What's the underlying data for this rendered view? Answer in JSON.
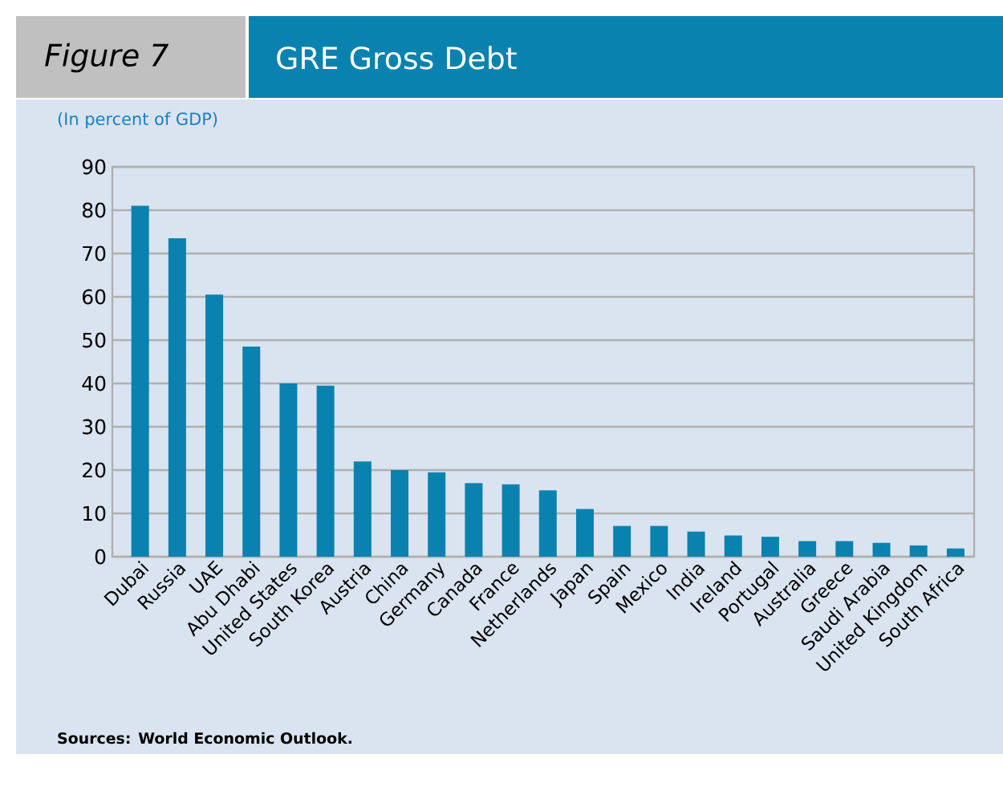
{
  "chart_data": {
    "type": "bar",
    "title": "GRE Gross Debt",
    "subtitle": "(In percent of GDP)",
    "annotations": [
      "Figure 7",
      "Sources: World Economic Outlook."
    ],
    "categories": [
      "Dubai",
      "Russia",
      "UAE",
      "Abu Dhabi",
      "United States",
      "South Korea",
      "Austria",
      "China",
      "Germany",
      "Canada",
      "France",
      "Netherlands",
      "Japan",
      "Spain",
      "Mexico",
      "India",
      "Ireland",
      "Portugal",
      "Australia",
      "Greece",
      "Saudi Arabia",
      "United Kingdom",
      "South Africa"
    ],
    "values": [
      81,
      73.5,
      60.5,
      48.5,
      40,
      39.5,
      22,
      20,
      19.5,
      17,
      16.7,
      15.3,
      11,
      7.1,
      7.1,
      5.8,
      4.9,
      4.6,
      3.6,
      3.6,
      3.2,
      2.6,
      1.9
    ],
    "color": "#0a82b0",
    "ylim": [
      0,
      90
    ],
    "yticks": [
      0,
      10,
      20,
      30,
      40,
      50,
      60,
      70,
      80,
      90
    ],
    "grid": "y"
  }
}
